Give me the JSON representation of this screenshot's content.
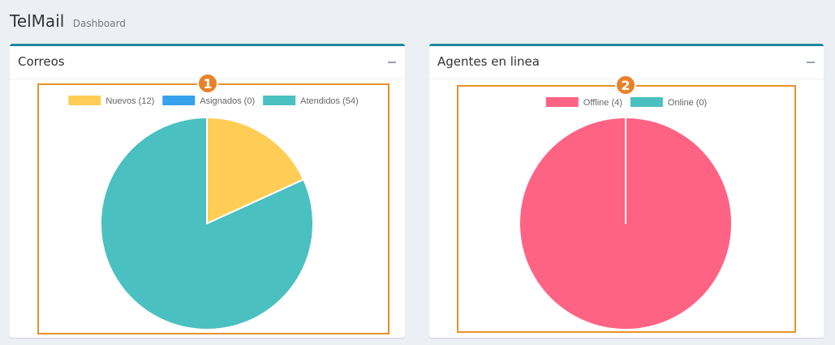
{
  "header": {
    "app_title": "TelMail",
    "subtitle": "Dashboard"
  },
  "colors": {
    "box_top_border": "#1f8a99",
    "highlight_border": "#e8912c",
    "badge": "#e8822a",
    "nuevos": "#ffcd56",
    "asignados": "#36a2eb",
    "atendidos": "#4bc0c0",
    "offline": "#ff6384",
    "online": "#4bc0c0"
  },
  "boxes": [
    {
      "title": "Correos",
      "badge": "1",
      "collapse_icon": "minus-icon"
    },
    {
      "title": "Agentes en linea",
      "badge": "2",
      "collapse_icon": "minus-icon"
    }
  ],
  "chart_data": [
    {
      "type": "pie",
      "title": "",
      "legend_position": "top",
      "categories": [
        "Nuevos (12)",
        "Asignados (0)",
        "Atendidos (54)"
      ],
      "values": [
        12,
        0,
        54
      ],
      "colors": [
        "#ffcd56",
        "#36a2eb",
        "#4bc0c0"
      ]
    },
    {
      "type": "pie",
      "title": "",
      "legend_position": "top",
      "categories": [
        "Offline (4)",
        "Online (0)"
      ],
      "values": [
        4,
        0
      ],
      "colors": [
        "#ff6384",
        "#4bc0c0"
      ]
    }
  ]
}
